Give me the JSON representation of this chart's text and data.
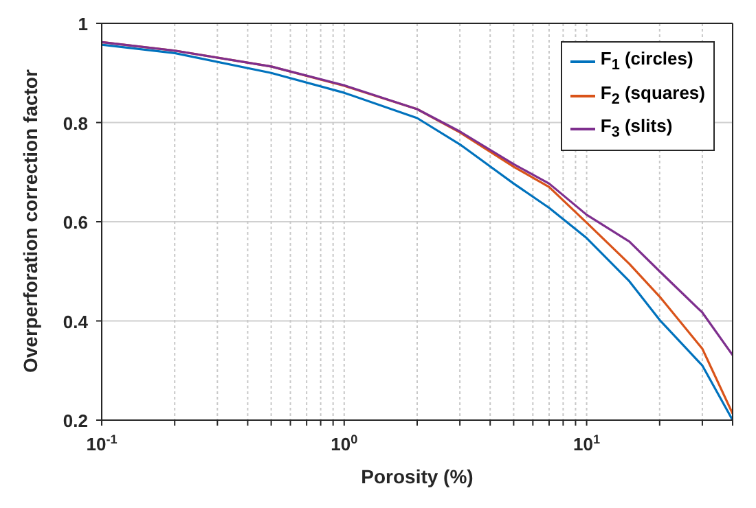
{
  "chart_data": {
    "type": "line",
    "xlabel": "Porosity (%)",
    "ylabel": "Overperforation correction factor",
    "log": "x",
    "xlim": [
      0.1,
      40
    ],
    "ylim": [
      0.2,
      1
    ],
    "xticks": [
      {
        "value": 0.1,
        "label": "10$^{-1}$"
      },
      {
        "value": 0.2,
        "label": null
      },
      {
        "value": 0.3,
        "label": null
      },
      {
        "value": 0.4,
        "label": null
      },
      {
        "value": 0.5,
        "label": null
      },
      {
        "value": 0.6,
        "label": null
      },
      {
        "value": 0.7,
        "label": null
      },
      {
        "value": 0.8,
        "label": null
      },
      {
        "value": 0.9,
        "label": null
      },
      {
        "value": 1,
        "label": "10$^{0}$"
      },
      {
        "value": 2,
        "label": null
      },
      {
        "value": 3,
        "label": null
      },
      {
        "value": 4,
        "label": null
      },
      {
        "value": 5,
        "label": null
      },
      {
        "value": 6,
        "label": null
      },
      {
        "value": 7,
        "label": null
      },
      {
        "value": 8,
        "label": null
      },
      {
        "value": 9,
        "label": null
      },
      {
        "value": 10,
        "label": "10$^{1}$"
      },
      {
        "value": 20,
        "label": null
      },
      {
        "value": 30,
        "label": null
      },
      {
        "value": 40,
        "label": null
      }
    ],
    "yticks": [
      0.2,
      0.4,
      0.6,
      0.8,
      1
    ],
    "grid": true,
    "legend": "top right",
    "line_style": "solid",
    "marker": "none",
    "x": [
      0.1,
      0.2,
      0.5,
      1,
      2,
      3,
      5,
      7,
      10,
      15,
      20,
      30,
      40
    ],
    "series": [
      {
        "name": "F$_{1}$ (circles)",
        "color": "#0072bd",
        "values": [
          0.957,
          0.94,
          0.9,
          0.86,
          0.809,
          0.756,
          0.677,
          0.628,
          0.567,
          0.48,
          0.402,
          0.31,
          0.2
        ]
      },
      {
        "name": "F$_{2}$ (squares)",
        "color": "#d95319",
        "values": [
          0.962,
          0.945,
          0.913,
          0.874,
          0.827,
          0.78,
          0.711,
          0.67,
          0.598,
          0.515,
          0.449,
          0.344,
          0.213
        ]
      },
      {
        "name": "F$_{3}$ (slits)",
        "color": "#7e2f8e",
        "values": [
          0.962,
          0.945,
          0.913,
          0.875,
          0.827,
          0.782,
          0.716,
          0.677,
          0.614,
          0.56,
          0.5,
          0.417,
          0.331
        ]
      }
    ]
  }
}
